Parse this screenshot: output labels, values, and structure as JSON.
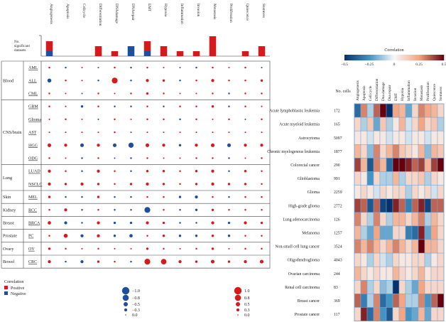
{
  "chart_data": [
    {
      "type": "scatter",
      "title": "Bubble matrix: cancer-related functional states across cancer types",
      "columns": [
        "Angiogenesis",
        "Apoptosis",
        "Cellcycle",
        "Differentiation",
        "DNAdamage",
        "DNArepair",
        "EMT",
        "Hypoxia",
        "Inflammation",
        "Invasion",
        "Metastasis",
        "Proliferation",
        "Quiescence",
        "Stemness"
      ],
      "groups": [
        {
          "name": "Blood",
          "rows": [
            "AML",
            "ALL",
            "CML"
          ]
        },
        {
          "name": "CNS/brain",
          "rows": [
            "GBM",
            "Glioma",
            "AST",
            "HGG",
            "ODG"
          ]
        },
        {
          "name": "Lung",
          "rows": [
            "LUAD",
            "NSCLC"
          ]
        },
        {
          "name": "Skin",
          "rows": [
            "MEL"
          ]
        },
        {
          "name": "Kidney",
          "rows": [
            "RCC"
          ]
        },
        {
          "name": "Breast",
          "rows": [
            "BRCA"
          ]
        },
        {
          "name": "Prostate",
          "rows": [
            "PC"
          ]
        },
        {
          "name": "Ovary",
          "rows": [
            "OV"
          ]
        },
        {
          "name": "Bowel",
          "rows": [
            "CRC"
          ]
        }
      ],
      "rows": [
        "AML",
        "ALL",
        "CML",
        "GBM",
        "Glioma",
        "AST",
        "HGG",
        "ODG",
        "LUAD",
        "NSCLC",
        "MEL",
        "RCC",
        "BRCA",
        "PC",
        "OV",
        "CRC"
      ],
      "correlation": [
        [
          0.1,
          -0.1,
          0.05,
          -0.05,
          0.1,
          -0.1,
          0.1,
          0.05,
          -0.05,
          -0.1,
          0.1,
          0.05,
          0.1,
          -0.05
        ],
        [
          -0.45,
          0.1,
          0.05,
          -0.1,
          0.75,
          -0.1,
          0.3,
          0.2,
          -0.1,
          0.1,
          0.3,
          0.1,
          0.1,
          0.2
        ],
        [
          0.1,
          0.05,
          -0.05,
          0.1,
          0.05,
          0.1,
          0.2,
          0.1,
          0.05,
          0.05,
          0.1,
          -0.1,
          0.1,
          0.1
        ],
        [
          0.1,
          0.05,
          -0.2,
          0.1,
          -0.1,
          -0.1,
          0.1,
          -0.1,
          0.1,
          0.1,
          0.2,
          -0.1,
          0.1,
          0.05
        ],
        [
          0.05,
          0.1,
          0.05,
          -0.05,
          0.1,
          0.05,
          0.1,
          0.1,
          -0.1,
          0.1,
          0.05,
          0.1,
          -0.05,
          0.1
        ],
        [
          0.05,
          0.05,
          0.05,
          0.05,
          0.1,
          -0.05,
          0.05,
          0.05,
          0.05,
          0.05,
          0.05,
          0.05,
          0.05,
          0.05
        ],
        [
          0.4,
          0.3,
          -0.4,
          0.3,
          -0.4,
          -0.65,
          0.4,
          0.3,
          -0.2,
          0.3,
          0.4,
          -0.4,
          0.3,
          0.3
        ],
        [
          0.1,
          0.05,
          -0.1,
          0.1,
          -0.05,
          -0.1,
          0.1,
          0.05,
          0.05,
          0.1,
          0.1,
          -0.1,
          0.05,
          0.1
        ],
        [
          0.3,
          0.1,
          -0.1,
          0.3,
          0.1,
          -0.1,
          0.2,
          0.2,
          0.1,
          0.2,
          0.3,
          -0.1,
          0.2,
          0.1
        ],
        [
          0.3,
          0.2,
          0.3,
          0.2,
          0.1,
          0.2,
          0.3,
          0.2,
          0.1,
          0.2,
          0.3,
          0.2,
          0.2,
          0.1
        ],
        [
          0.2,
          -0.1,
          -0.1,
          0.2,
          -0.1,
          -0.1,
          0.1,
          0.1,
          -0.2,
          -0.3,
          0.1,
          -0.1,
          0.1,
          0.1
        ],
        [
          0.1,
          0.3,
          -0.1,
          0.1,
          -0.1,
          -0.1,
          -0.75,
          0.1,
          -0.1,
          -0.2,
          0.2,
          0.1,
          0.1,
          0.1
        ],
        [
          0.35,
          -0.3,
          -0.1,
          0.3,
          -0.2,
          -0.2,
          0.3,
          0.2,
          -0.1,
          -0.1,
          0.3,
          -0.2,
          0.3,
          0.2
        ],
        [
          0.1,
          0.45,
          -0.3,
          0.3,
          -0.2,
          -0.35,
          0.1,
          0.2,
          -0.2,
          -0.2,
          0.2,
          -0.2,
          0.1,
          0.1
        ],
        [
          0.2,
          0.1,
          0.05,
          0.1,
          0.05,
          0.05,
          0.2,
          0.1,
          0.05,
          0.1,
          0.2,
          0.05,
          0.1,
          0.1
        ],
        [
          0.3,
          -0.1,
          -0.3,
          0.2,
          0.1,
          -0.1,
          0.75,
          0.7,
          0.3,
          0.2,
          0.4,
          0.2,
          0.3,
          0.4
        ]
      ],
      "top_bar": {
        "label": "No. significant datasets",
        "positive": [
          2,
          0,
          0,
          2,
          1,
          0,
          2,
          2,
          1,
          1,
          4,
          0,
          1,
          2
        ],
        "negative": [
          1,
          0,
          0,
          0,
          0,
          2,
          1,
          0,
          0,
          0,
          0,
          0,
          0,
          0
        ],
        "ylim": [
          0,
          4
        ]
      },
      "legend_color": {
        "title": "Correlation",
        "positive": "Positive",
        "negative": "Negative"
      },
      "legend_size_negative": [
        "−1.0",
        "−0.8",
        "−0.5",
        "−0.3",
        "0.0"
      ],
      "legend_size_positive": [
        "1.0",
        "0.8",
        "0.5",
        "0.3",
        "0.0"
      ]
    },
    {
      "type": "heatmap",
      "colorbar": {
        "title": "Correlation",
        "ticks": [
          "−0.5",
          "−0.25",
          "0",
          "0.25",
          "0.5"
        ],
        "range": [
          -0.5,
          0.5
        ]
      },
      "columns": [
        "Angiogenesis",
        "Apoptosis",
        "Cell cycle",
        "Differentiation",
        "Dna damage",
        "Dna repair",
        "EMT",
        "Hypoxia",
        "Inflammation",
        "Invasion",
        "Metastasis",
        "Proliferation",
        "Quiescence",
        "Stemness"
      ],
      "cells_header": "No. cells",
      "rows": [
        {
          "name": "Acute lymphoblastic leukemia",
          "cells": "172"
        },
        {
          "name": "Acute myeloid leukemia",
          "cells": "165"
        },
        {
          "name": "Astrocytoma",
          "cells": "5097"
        },
        {
          "name": "Chronic myelogenous leukemia",
          "cells": "1877"
        },
        {
          "name": "Colorectal cancer",
          "cells": "290"
        },
        {
          "name": "Glioblastoma",
          "cells": "991"
        },
        {
          "name": "Glioma",
          "cells": "2259"
        },
        {
          "name": "High-grade glioma",
          "cells": "2772"
        },
        {
          "name": "Lung adenocarcinoma",
          "cells": "126"
        },
        {
          "name": "Melanoma",
          "cells": "1257"
        },
        {
          "name": "Non-small cell lung cancer",
          "cells": "3524"
        },
        {
          "name": "Oligodendroglioma",
          "cells": "4043"
        },
        {
          "name": "Ovarian carcinoma",
          "cells": "244"
        },
        {
          "name": "Renal cell carcinoma",
          "cells": "83"
        },
        {
          "name": "Breast cancer",
          "cells": "369"
        },
        {
          "name": "Prostate cancer",
          "cells": "117"
        }
      ],
      "values": [
        [
          -0.35,
          0.3,
          -0.1,
          0.35,
          0.5,
          -0.5,
          0.25,
          0.2,
          -0.2,
          0.1,
          0.3,
          0.25,
          0.2,
          0.1
        ],
        [
          0.1,
          -0.1,
          0.15,
          -0.2,
          0.15,
          -0.1,
          0.05,
          0.2,
          -0.05,
          0.1,
          0.25,
          0.1,
          0.15,
          -0.1
        ],
        [
          0.05,
          0.05,
          -0.05,
          0.05,
          0.05,
          -0.05,
          0.05,
          0.05,
          -0.05,
          0.05,
          0.05,
          -0.05,
          0.05,
          0.05
        ],
        [
          0.2,
          0.1,
          -0.15,
          0.3,
          0.1,
          0.2,
          0.3,
          0.15,
          0.1,
          0.05,
          0.2,
          -0.15,
          0.2,
          0.15
        ],
        [
          0.4,
          0.2,
          -0.4,
          0.3,
          0.2,
          -0.35,
          0.55,
          0.5,
          0.45,
          0.35,
          0.4,
          0.2,
          0.4,
          0.6
        ],
        [
          0.1,
          0.05,
          -0.25,
          0.1,
          -0.1,
          -0.1,
          0.2,
          -0.1,
          0.1,
          0.1,
          0.15,
          -0.1,
          0.1,
          0.05
        ],
        [
          0.05,
          0.1,
          0.05,
          -0.05,
          0.1,
          0.05,
          0.1,
          0.1,
          -0.1,
          0.1,
          0.05,
          0.1,
          -0.05,
          0.1
        ],
        [
          0.4,
          0.35,
          -0.4,
          0.35,
          -0.45,
          -0.55,
          0.45,
          0.35,
          -0.3,
          0.35,
          0.45,
          -0.45,
          0.35,
          0.35
        ],
        [
          0.3,
          0.1,
          -0.1,
          0.3,
          0.1,
          -0.1,
          0.2,
          0.2,
          0.1,
          0.2,
          0.3,
          -0.1,
          0.2,
          0.1
        ],
        [
          0.2,
          -0.1,
          -0.2,
          0.25,
          -0.2,
          -0.2,
          0.1,
          0.1,
          -0.3,
          -0.35,
          0.45,
          -0.2,
          0.25,
          0.1
        ],
        [
          0.3,
          0.2,
          0.3,
          0.2,
          0.1,
          0.2,
          0.3,
          0.2,
          0.1,
          0.2,
          0.5,
          0.2,
          0.2,
          0.1
        ],
        [
          0.1,
          0.05,
          -0.1,
          0.1,
          -0.05,
          -0.1,
          0.1,
          0.05,
          0.05,
          0.1,
          0.1,
          -0.1,
          0.05,
          0.1
        ],
        [
          0.2,
          0.1,
          0.05,
          0.1,
          0.05,
          0.05,
          0.2,
          0.1,
          0.05,
          0.1,
          0.2,
          0.05,
          0.1,
          0.1
        ],
        [
          0.1,
          0.3,
          -0.1,
          0.1,
          -0.15,
          -0.1,
          -0.55,
          0.1,
          -0.1,
          -0.2,
          0.25,
          0.1,
          0.1,
          0.1
        ],
        [
          0.35,
          -0.3,
          -0.1,
          0.3,
          -0.35,
          -0.25,
          0.35,
          0.25,
          -0.1,
          -0.1,
          0.3,
          -0.25,
          0.35,
          0.5
        ],
        [
          0.1,
          0.45,
          -0.35,
          0.3,
          -0.25,
          -0.4,
          0.1,
          0.25,
          -0.25,
          -0.2,
          0.2,
          -0.2,
          0.1,
          0.1
        ]
      ]
    }
  ],
  "colors": {
    "positive": "#d7191c",
    "negative": "#1f4e9c",
    "grid": "#888888"
  }
}
